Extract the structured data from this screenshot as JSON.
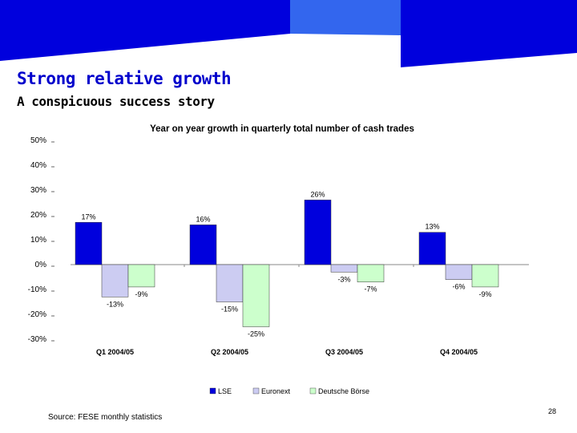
{
  "header": {
    "title": "Strong relative growth",
    "subtitle": "A conspicuous success story"
  },
  "footer": {
    "source": "Source: FESE monthly statistics",
    "page_number": "28"
  },
  "colors": {
    "brand_blue": "#0000dd",
    "banner_light": "#3366ee",
    "lse": "#0000dd",
    "euronext": "#ccccf2",
    "deutsche_borse": "#ccffcc"
  },
  "chart_data": {
    "type": "bar",
    "title": "Year on year growth in quarterly total number of cash trades",
    "categories": [
      "Q1 2004/05",
      "Q2 2004/05",
      "Q3 2004/05",
      "Q4 2004/05"
    ],
    "series": [
      {
        "name": "LSE",
        "values": [
          17,
          16,
          26,
          13
        ],
        "labels": [
          "17%",
          "16%",
          "26%",
          "13%"
        ]
      },
      {
        "name": "Euronext",
        "values": [
          -13,
          -15,
          -3,
          -6
        ],
        "labels": [
          "-13%",
          "-15%",
          "-3%",
          "-6%"
        ]
      },
      {
        "name": "Deutsche Börse",
        "values": [
          -9,
          -25,
          -7,
          -9
        ],
        "labels": [
          "-9%",
          "-25%",
          "-7%",
          "-9%"
        ]
      }
    ],
    "y_ticks": [
      "50%",
      "40%",
      "30%",
      "20%",
      "10%",
      "0%",
      "-10%",
      "-20%",
      "-30%"
    ],
    "y_tick_values": [
      50,
      40,
      30,
      20,
      10,
      0,
      -10,
      -20,
      -30
    ],
    "ylim": [
      -30,
      50
    ],
    "xlabel": "",
    "ylabel": "",
    "legend_position": "bottom",
    "grid": false
  }
}
